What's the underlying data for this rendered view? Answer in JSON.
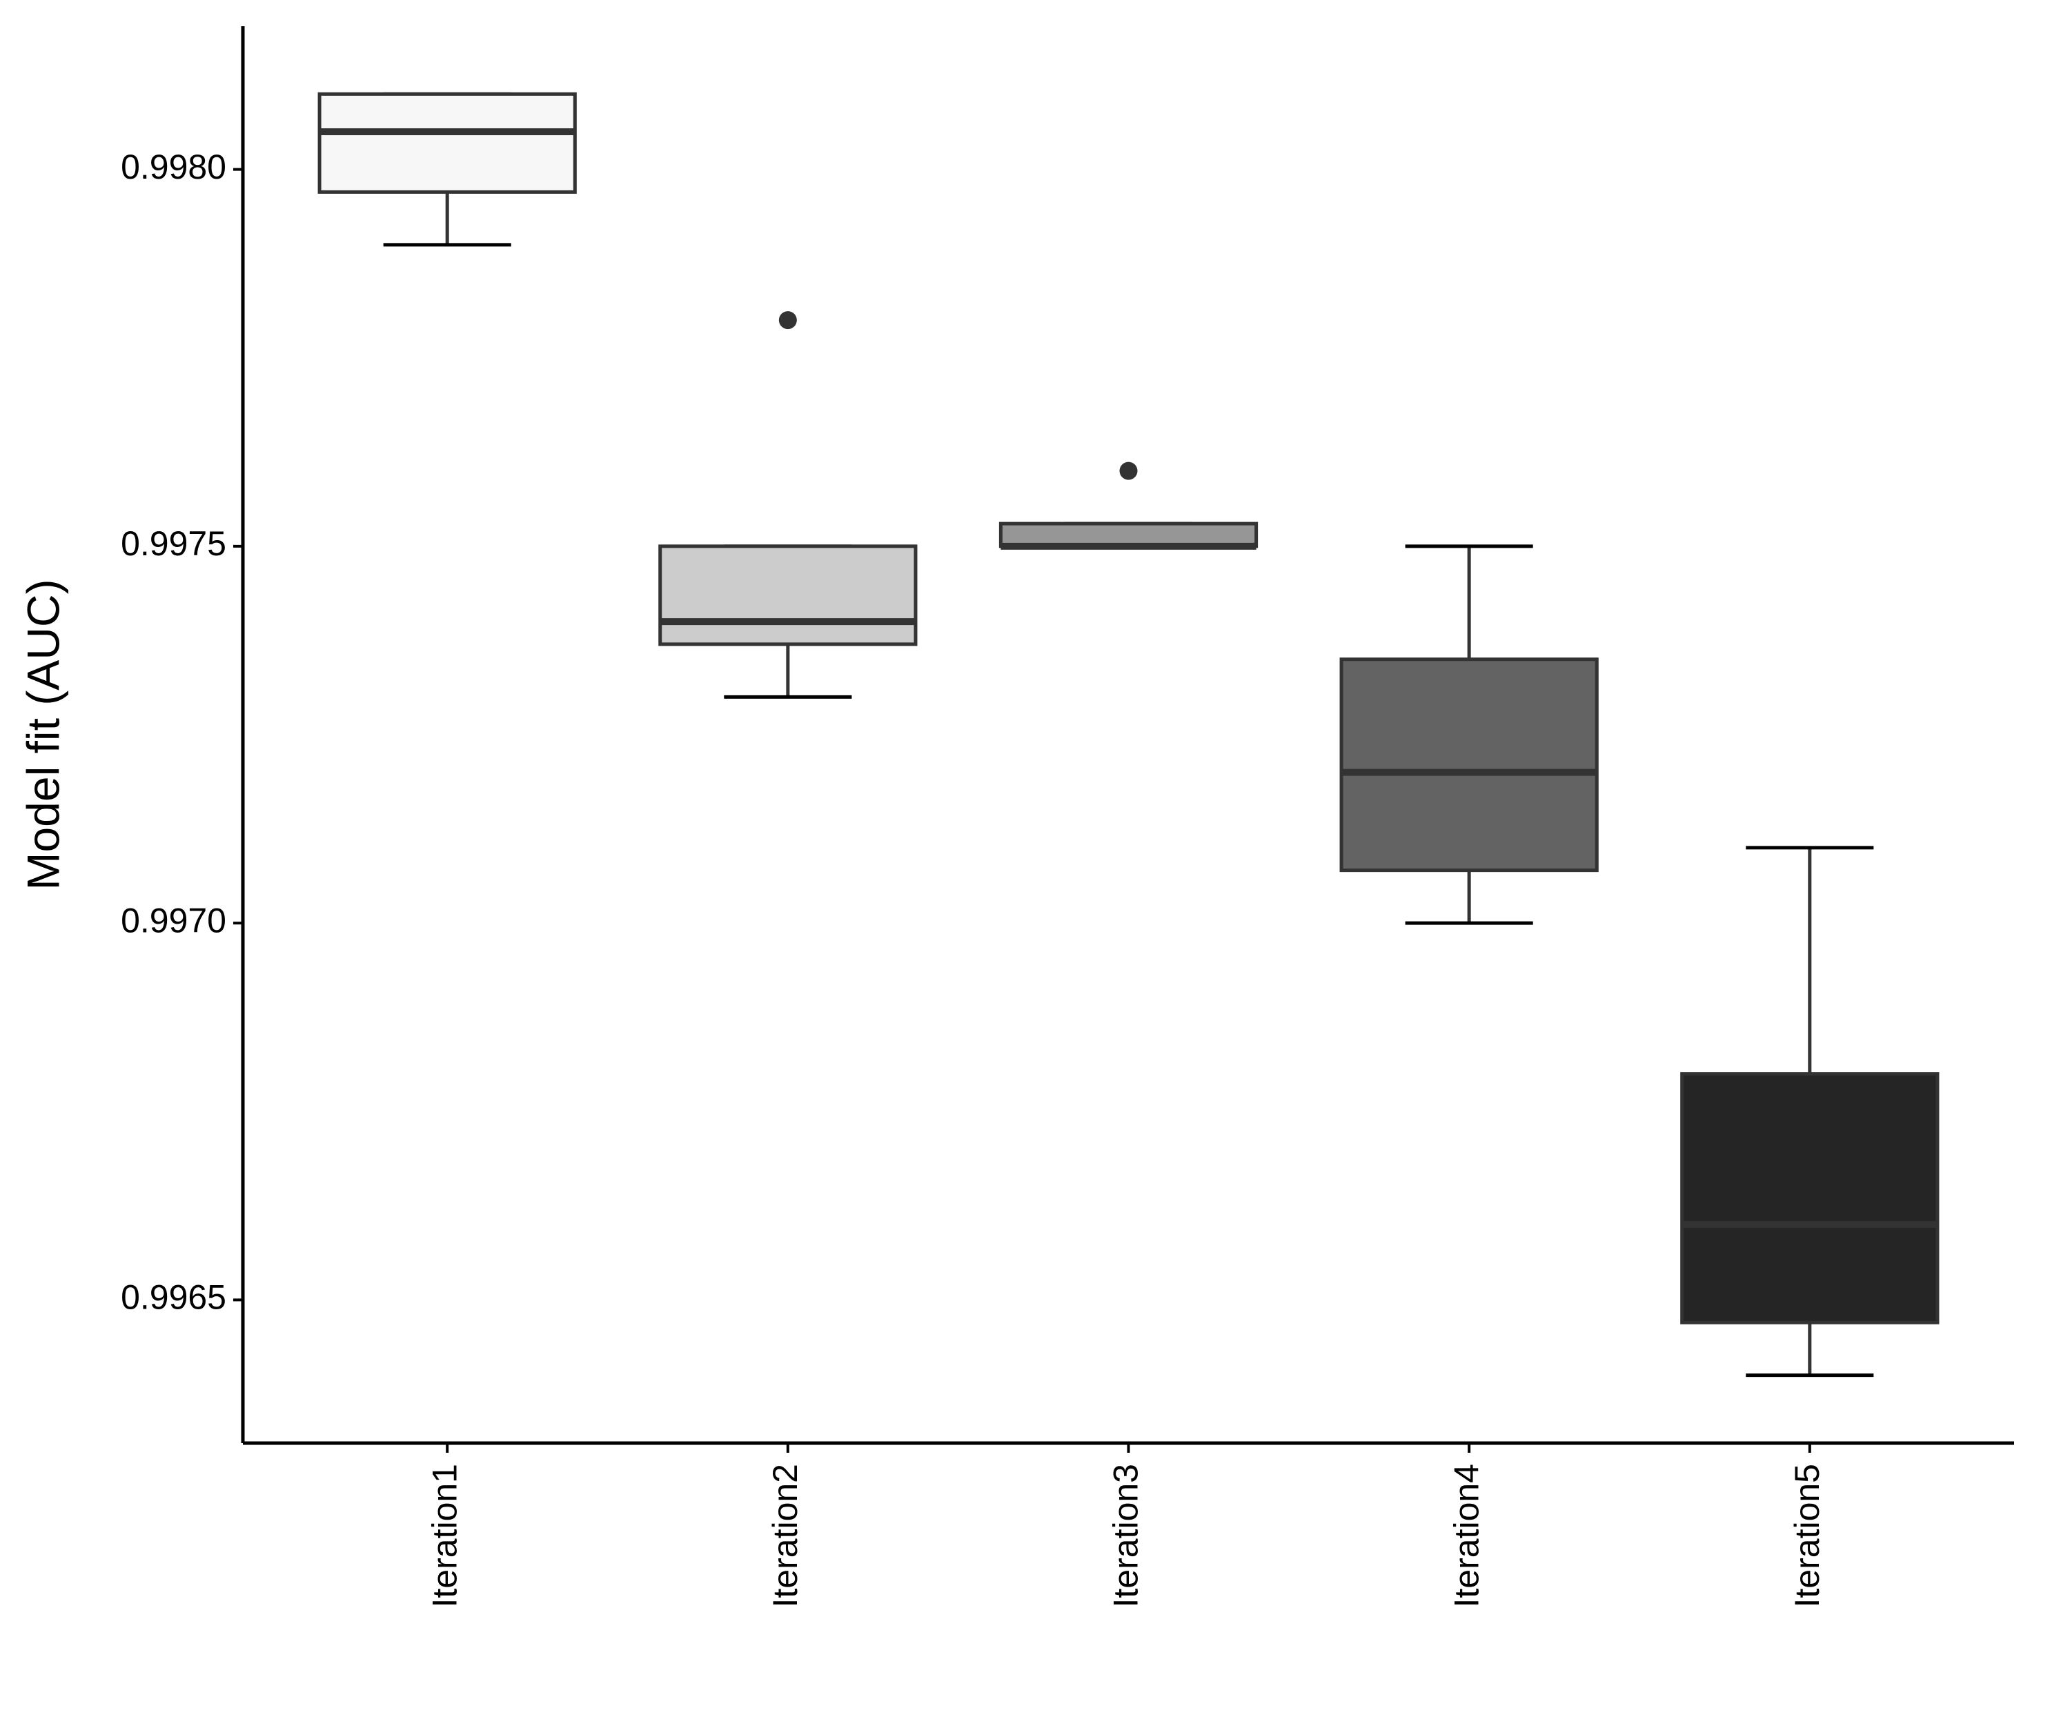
{
  "chart_data": {
    "type": "box",
    "ylabel": "Model fit (AUC)",
    "categories": [
      "Iteration1",
      "Iteration2",
      "Iteration3",
      "Iteration4",
      "Iteration5"
    ],
    "min": [
      0.9979,
      0.9973,
      0.9975,
      0.997,
      0.9964
    ],
    "q1": [
      0.99797,
      0.99737,
      0.9975,
      0.99707,
      0.99647
    ],
    "median": [
      0.99805,
      0.9974,
      0.9975,
      0.9972,
      0.9966
    ],
    "q3": [
      0.9981,
      0.9975,
      0.99753,
      0.99735,
      0.9968
    ],
    "max": [
      0.9981,
      0.9975,
      0.99753,
      0.9975,
      0.9971
    ],
    "outliers": [
      [],
      [
        0.9978
      ],
      [
        0.9976
      ],
      [],
      []
    ],
    "colors": [
      "#f7f7f7",
      "#cccccc",
      "#969696",
      "#636363",
      "#252525"
    ],
    "ylim": [
      0.99631,
      0.99819
    ],
    "yticks": [
      {
        "value": 0.9965,
        "label": "0.9965"
      },
      {
        "value": 0.997,
        "label": "0.9970"
      },
      {
        "value": 0.9975,
        "label": "0.9975"
      },
      {
        "value": 0.998,
        "label": "0.9980"
      }
    ]
  }
}
